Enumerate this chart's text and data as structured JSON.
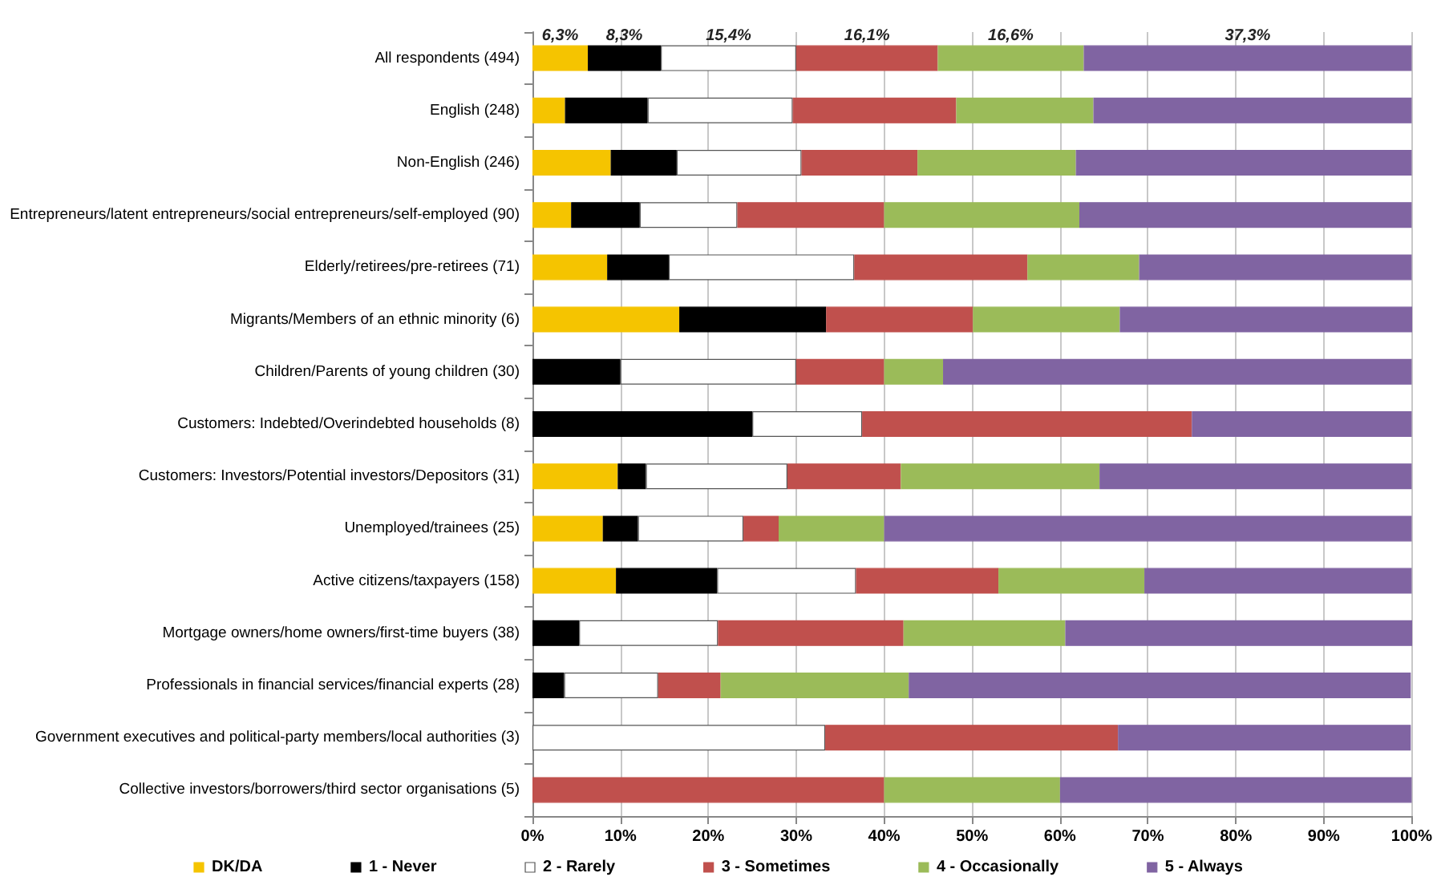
{
  "chart_data": {
    "type": "bar",
    "orientation": "horizontal",
    "stacked": true,
    "categories": [
      "All respondents (494)",
      "English (248)",
      "Non-English (246)",
      "Entrepreneurs/latent entrepreneurs/social entrepreneurs/self-employed (90)",
      "Elderly/retirees/pre-retirees (71)",
      "Migrants/Members of an ethnic minority (6)",
      "Children/Parents of young children (30)",
      "Customers: Indebted/Overindebted households (8)",
      "Customers: Investors/Potential investors/Depositors (31)",
      "Unemployed/trainees (25)",
      "Active citizens/taxpayers (158)",
      "Mortgage owners/home owners/first-time buyers (38)",
      "Professionals in financial services/financial experts (28)",
      "Government executives and political-party members/local authorities (3)",
      "Collective investors/borrowers/third sector organisations (5)"
    ],
    "series": [
      {
        "name": "DK/DA",
        "color": "#f5c400",
        "values": [
          6.3,
          3.7,
          8.9,
          4.4,
          8.5,
          16.7,
          0,
          0,
          9.7,
          8,
          9.5,
          0,
          0,
          0,
          0
        ],
        "value_labels": [
          "6,3%",
          null,
          null,
          null,
          null,
          null,
          null,
          null,
          null,
          null,
          null,
          null,
          null,
          null,
          null
        ]
      },
      {
        "name": "1 - Never",
        "color": "#000000",
        "values": [
          8.3,
          9.4,
          7.5,
          7.8,
          7.0,
          16.7,
          10,
          25,
          3.2,
          4,
          11.5,
          5.3,
          3.6,
          0,
          0
        ],
        "value_labels": [
          "8,3%",
          null,
          null,
          null,
          null,
          null,
          null,
          null,
          null,
          null,
          null,
          null,
          null,
          null,
          null
        ]
      },
      {
        "name": "2 - Rarely",
        "color": "#ffffff",
        "values": [
          15.4,
          16.5,
          14.2,
          11.1,
          21.1,
          0,
          20,
          12.5,
          16.1,
          12,
          15.8,
          15.8,
          10.7,
          33.3,
          0
        ],
        "value_labels": [
          "15,4%",
          null,
          null,
          null,
          null,
          null,
          null,
          null,
          null,
          null,
          null,
          null,
          null,
          null,
          null
        ]
      },
      {
        "name": "3 - Sometimes",
        "color": "#c0504d",
        "values": [
          16.1,
          18.6,
          13.2,
          16.7,
          19.7,
          16.7,
          10,
          37.5,
          12.9,
          4,
          16.2,
          21.1,
          7.1,
          33.3,
          40
        ],
        "value_labels": [
          "16,1%",
          null,
          null,
          null,
          null,
          null,
          null,
          null,
          null,
          null,
          null,
          null,
          null,
          null,
          null
        ]
      },
      {
        "name": "4 - Occasionally",
        "color": "#9bbb59",
        "values": [
          16.6,
          15.6,
          18.0,
          22.2,
          12.7,
          16.7,
          6.7,
          0,
          22.6,
          12,
          16.6,
          18.4,
          21.4,
          0,
          20
        ],
        "value_labels": [
          "16,6%",
          null,
          null,
          null,
          null,
          null,
          null,
          null,
          null,
          null,
          null,
          null,
          null,
          null,
          null
        ]
      },
      {
        "name": "5 - Always",
        "color": "#8064a2",
        "values": [
          37.3,
          36.2,
          38.2,
          37.8,
          31.0,
          33.3,
          53.3,
          25,
          35.5,
          60,
          30.4,
          39.5,
          57.1,
          33.3,
          40
        ],
        "value_labels": [
          "37,3%",
          null,
          null,
          null,
          null,
          null,
          null,
          null,
          null,
          null,
          null,
          null,
          null,
          null,
          null
        ]
      }
    ],
    "xlim": [
      0,
      100
    ],
    "xticks": [
      {
        "value": 0,
        "label": "0%"
      },
      {
        "value": 10,
        "label": "10%"
      },
      {
        "value": 20,
        "label": "20%"
      },
      {
        "value": 30,
        "label": "30%"
      },
      {
        "value": 40,
        "label": "40%"
      },
      {
        "value": 50,
        "label": "50%"
      },
      {
        "value": 60,
        "label": "60%"
      },
      {
        "value": 70,
        "label": "70%"
      },
      {
        "value": 80,
        "label": "80%"
      },
      {
        "value": 90,
        "label": "90%"
      },
      {
        "value": 100,
        "label": "100%"
      }
    ],
    "grid": "x",
    "legend": "bottom"
  }
}
